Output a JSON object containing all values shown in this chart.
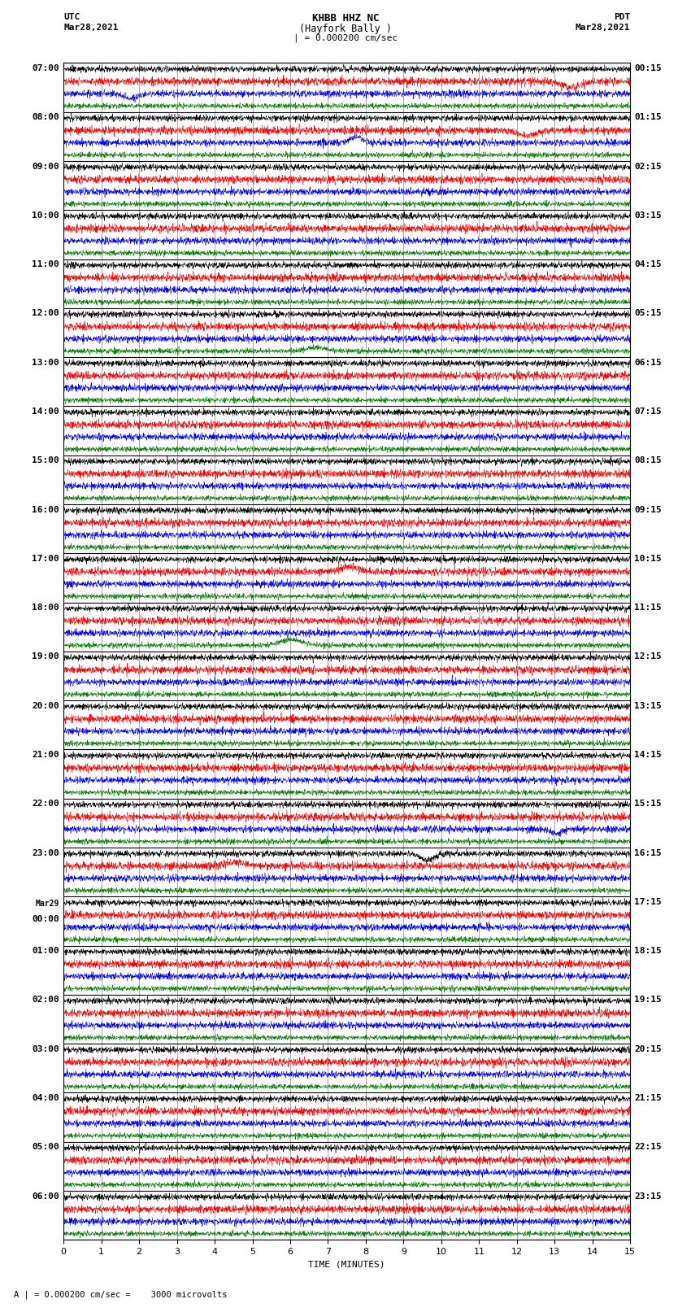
{
  "title_line1": "KHBB HHZ NC",
  "title_line2": "(Hayfork Bally )",
  "scale_text": "| = 0.000200 cm/sec",
  "left_label_top": "UTC",
  "left_label_date": "Mar28,2021",
  "right_label_top": "PDT",
  "right_label_date": "Mar28,2021",
  "bottom_label": "TIME (MINUTES)",
  "footer_text": "A | = 0.000200 cm/sec =    3000 microvolts",
  "num_rows": 24,
  "time_axis_max": 15,
  "trace_colors": [
    "black",
    "red",
    "blue",
    "green"
  ],
  "background_color": "white",
  "fig_width": 8.5,
  "fig_height": 16.13,
  "dpi": 100,
  "left_time_labels": [
    "07:00",
    "08:00",
    "09:00",
    "10:00",
    "11:00",
    "12:00",
    "13:00",
    "14:00",
    "15:00",
    "16:00",
    "17:00",
    "18:00",
    "19:00",
    "20:00",
    "21:00",
    "22:00",
    "23:00",
    "Mar29",
    "01:00",
    "02:00",
    "03:00",
    "04:00",
    "05:00",
    "06:00"
  ],
  "left_time_labels2": [
    "",
    "",
    "",
    "",
    "",
    "",
    "",
    "",
    "",
    "",
    "",
    "",
    "",
    "",
    "",
    "",
    "",
    "00:00",
    "",
    "",
    "",
    "",
    "",
    ""
  ],
  "right_time_labels": [
    "00:15",
    "01:15",
    "02:15",
    "03:15",
    "04:15",
    "05:15",
    "06:15",
    "07:15",
    "08:15",
    "09:15",
    "10:15",
    "11:15",
    "12:15",
    "13:15",
    "14:15",
    "15:15",
    "16:15",
    "17:15",
    "18:15",
    "19:15",
    "20:15",
    "21:15",
    "22:15",
    "23:15"
  ]
}
